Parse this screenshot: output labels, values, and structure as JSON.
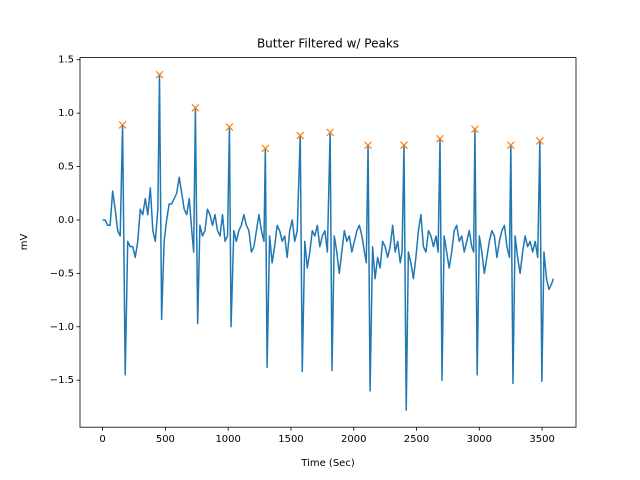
{
  "chart_data": {
    "type": "line",
    "title": "Butter Filtered w/ Peaks",
    "x_label": "Time (Sec)",
    "y_label": "mV",
    "xlim": [
      -180,
      3770
    ],
    "ylim": [
      -1.94,
      1.52
    ],
    "xticks": [
      0,
      500,
      1000,
      1500,
      2000,
      2500,
      3000,
      3500
    ],
    "yticks": [
      {
        "value": -1.5,
        "label": "−1.5"
      },
      {
        "value": -1.0,
        "label": "−1.0"
      },
      {
        "value": -0.5,
        "label": "−0.5"
      },
      {
        "value": 0.0,
        "label": "0.0"
      },
      0.5,
      {
        "value": 1.0,
        "label": "1.0"
      },
      1.5
    ],
    "series": [
      {
        "color": "#1f77b4",
        "marker": "none",
        "x": [
          0,
          20,
          40,
          60,
          80,
          100,
          120,
          140,
          159,
          180,
          200,
          220,
          240,
          260,
          280,
          300,
          320,
          340,
          360,
          380,
          400,
          420,
          440,
          453,
          470,
          490,
          510,
          530,
          550,
          570,
          590,
          610,
          630,
          650,
          670,
          690,
          710,
          725,
          739,
          757,
          775,
          795,
          815,
          835,
          855,
          875,
          895,
          915,
          935,
          955,
          975,
          995,
          1010,
          1023,
          1045,
          1065,
          1085,
          1105,
          1125,
          1145,
          1165,
          1185,
          1205,
          1225,
          1245,
          1265,
          1285,
          1296,
          1310,
          1330,
          1350,
          1370,
          1390,
          1410,
          1430,
          1450,
          1470,
          1490,
          1510,
          1530,
          1550,
          1574,
          1590,
          1610,
          1630,
          1650,
          1670,
          1690,
          1710,
          1730,
          1750,
          1770,
          1790,
          1812,
          1827,
          1845,
          1865,
          1885,
          1905,
          1925,
          1945,
          1965,
          1985,
          2005,
          2025,
          2045,
          2065,
          2085,
          2100,
          2114,
          2130,
          2150,
          2170,
          2190,
          2210,
          2230,
          2250,
          2270,
          2290,
          2310,
          2330,
          2350,
          2370,
          2385,
          2400,
          2418,
          2435,
          2455,
          2475,
          2495,
          2515,
          2535,
          2555,
          2575,
          2595,
          2615,
          2635,
          2655,
          2672,
          2687,
          2703,
          2720,
          2740,
          2760,
          2780,
          2800,
          2820,
          2840,
          2860,
          2880,
          2900,
          2920,
          2940,
          2955,
          2965,
          2983,
          3000,
          3020,
          3040,
          3060,
          3080,
          3100,
          3120,
          3140,
          3160,
          3180,
          3200,
          3220,
          3240,
          3251,
          3268,
          3285,
          3305,
          3325,
          3345,
          3365,
          3385,
          3405,
          3425,
          3445,
          3465,
          3482,
          3498,
          3515,
          3535,
          3555,
          3575,
          3590
        ],
        "values": [
          0,
          0,
          -0.05,
          -0.05,
          0.27,
          0.1,
          -0.1,
          -0.15,
          0.89,
          -1.45,
          -0.2,
          -0.25,
          -0.25,
          -0.35,
          -0.2,
          0.1,
          0.05,
          0.2,
          0.05,
          0.3,
          -0.1,
          -0.2,
          0.1,
          1.36,
          -0.93,
          -0.2,
          0.0,
          0.15,
          0.15,
          0.2,
          0.25,
          0.4,
          0.25,
          0.1,
          0.05,
          0.2,
          -0.1,
          -0.3,
          1.05,
          -0.97,
          -0.05,
          -0.15,
          -0.1,
          0.1,
          0.05,
          -0.05,
          0.05,
          -0.1,
          -0.15,
          0.05,
          -0.2,
          -0.15,
          0.87,
          -1.0,
          -0.1,
          -0.2,
          -0.1,
          -0.05,
          0.05,
          -0.05,
          -0.1,
          -0.3,
          -0.25,
          -0.1,
          0.05,
          -0.1,
          -0.2,
          0.67,
          -1.38,
          -0.15,
          -0.4,
          -0.25,
          -0.05,
          -0.1,
          -0.2,
          -0.15,
          -0.35,
          -0.1,
          0.0,
          -0.2,
          -0.1,
          0.79,
          -1.42,
          -0.2,
          -0.45,
          -0.3,
          -0.1,
          -0.15,
          -0.05,
          -0.25,
          -0.15,
          -0.1,
          -0.3,
          0.82,
          -1.41,
          -0.15,
          -0.3,
          -0.5,
          -0.3,
          -0.1,
          -0.2,
          -0.15,
          -0.3,
          -0.2,
          -0.1,
          -0.05,
          -0.15,
          -0.3,
          -0.4,
          0.7,
          -1.6,
          -0.25,
          -0.55,
          -0.35,
          -0.45,
          -0.2,
          -0.25,
          -0.35,
          -0.25,
          -0.05,
          -0.3,
          -0.2,
          -0.4,
          -0.3,
          0.7,
          -1.78,
          -0.3,
          -0.4,
          -0.55,
          -0.35,
          -0.1,
          0.05,
          -0.25,
          -0.3,
          -0.1,
          -0.15,
          -0.25,
          -0.15,
          -0.3,
          0.76,
          -1.5,
          -0.15,
          -0.3,
          -0.45,
          -0.3,
          -0.1,
          -0.05,
          -0.2,
          -0.15,
          -0.3,
          -0.2,
          -0.1,
          -0.25,
          -0.3,
          0.85,
          -1.45,
          -0.15,
          -0.3,
          -0.5,
          -0.35,
          -0.2,
          -0.1,
          -0.15,
          -0.35,
          -0.2,
          -0.1,
          -0.05,
          -0.25,
          -0.35,
          0.7,
          -1.53,
          -0.15,
          -0.35,
          -0.5,
          -0.3,
          -0.15,
          -0.25,
          -0.2,
          -0.3,
          -0.2,
          -0.35,
          0.74,
          -1.51,
          -0.3,
          -0.55,
          -0.65,
          -0.6,
          -0.55
        ]
      },
      {
        "color": "#ff7f0e",
        "marker": "x",
        "x": [
          159,
          453,
          739,
          1010,
          1296,
          1574,
          1812,
          2114,
          2400,
          2687,
          2965,
          3251,
          3482
        ],
        "values": [
          0.89,
          1.36,
          1.05,
          0.87,
          0.67,
          0.79,
          0.82,
          0.7,
          0.7,
          0.76,
          0.85,
          0.7,
          0.74
        ]
      }
    ]
  }
}
